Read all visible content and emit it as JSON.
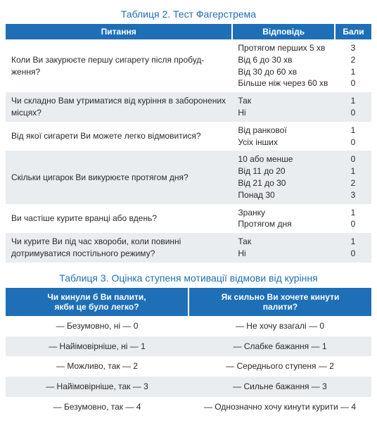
{
  "colors": {
    "header_bg": "#1e6fb6",
    "title_color": "#1e6fb6",
    "row_odd": "#ffffff",
    "row_even": "#e9edf0",
    "text": "#2a2a2a"
  },
  "table2": {
    "title": "Таблиця 2.  Тест Фагерстрема",
    "headers": [
      "Питання",
      "Відповідь",
      "Бали"
    ],
    "rows": [
      {
        "q": "Коли Ви закурюєте першу сигарету після пробуд­ження?",
        "a": "Протягом перших 5 хв<br>Від 6 до 30 хв<br>Від 30 до 60 хв<br>Більше ніж через 60 хв",
        "b": "3<br>2<br>1<br>0"
      },
      {
        "q": "Чи складно Вам утриматися від куріння в заборо­нених місцях?",
        "a": "Так<br>Ні",
        "b": "1<br>0"
      },
      {
        "q": "Від якої сигарети Ви можете легко відмовитися?",
        "a": "Від ранкової<br>Усіх інших",
        "b": "1<br>0"
      },
      {
        "q": "Скільки цигарок Ви викурюєте протягом дня?",
        "a": "10 або менше<br>Від 11 до 20<br>Від 21 до 30<br>Понад 30",
        "b": "0<br>1<br>2<br>3"
      },
      {
        "q": "Ви частіше курите вранці або вдень?",
        "a": "Зранку<br>Протягом дня",
        "b": "1<br>0"
      },
      {
        "q": "Чи курите Ви під час хвороби, коли повинні дотримуватися постільного режиму?",
        "a": "Так<br>Ні",
        "b": "1<br>0"
      }
    ]
  },
  "table3": {
    "title": "Таблиця 3.  Оцінка ступеня мотивації відмови від куріння",
    "headers": [
      "Чи кинули б Ви палити,<br>якби це було легко?",
      "Як сильно Ви хочете кинути<br>палити?"
    ],
    "rows": [
      [
        "— Безумовно, ні — 0",
        "— Не хочу взагалі — 0"
      ],
      [
        "— Найімовірніше, ні — 1",
        "— Слабке бажання — 1"
      ],
      [
        "— Можливо, так — 2",
        "— Середнього ступеня — 2"
      ],
      [
        "— Найімовірніше, так — 3",
        "— Сильне бажання — 3"
      ],
      [
        "— Безумовно, так — 4",
        "— Однозначно хочу кинути курити — 4"
      ]
    ]
  }
}
